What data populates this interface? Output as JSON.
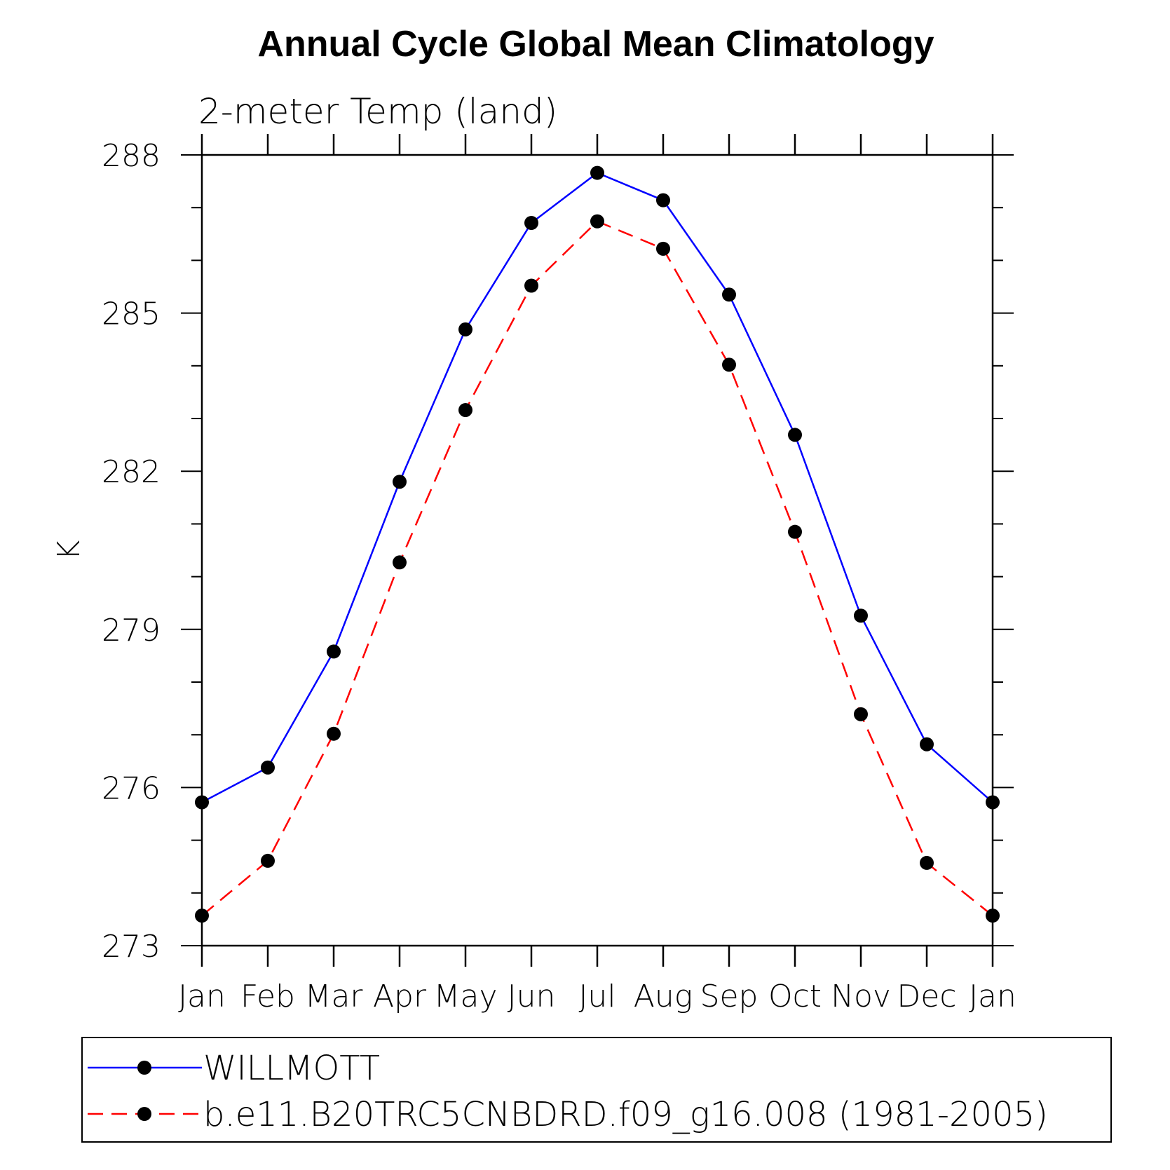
{
  "chart_data": {
    "type": "line",
    "title": "Annual Cycle Global Mean Climatology",
    "subtitle": "2-meter Temp (land)",
    "xlabel": "",
    "ylabel": "K",
    "categories": [
      "Jan",
      "Feb",
      "Mar",
      "Apr",
      "May",
      "Jun",
      "Jul",
      "Aug",
      "Sep",
      "Oct",
      "Nov",
      "Dec",
      "Jan"
    ],
    "ylim": [
      273,
      288
    ],
    "yticks": [
      "273",
      "276",
      "279",
      "282",
      "285",
      "288"
    ],
    "grid": false,
    "legend_position": "bottom",
    "series": [
      {
        "name": "WILLMOTT",
        "color": "#0000ff",
        "dash": "solid",
        "values": [
          275.72,
          276.38,
          278.58,
          281.8,
          284.69,
          286.71,
          287.66,
          287.14,
          285.35,
          282.69,
          279.26,
          276.82,
          275.72
        ]
      },
      {
        "name": "b.e11.B20TRC5CNBDRD.f09_g16.008 (1981-2005)",
        "color": "#ff0000",
        "dash": "dashed",
        "values": [
          273.57,
          274.61,
          277.02,
          280.27,
          283.16,
          285.52,
          286.74,
          286.22,
          284.02,
          280.85,
          277.39,
          274.57,
          273.57
        ]
      }
    ]
  }
}
